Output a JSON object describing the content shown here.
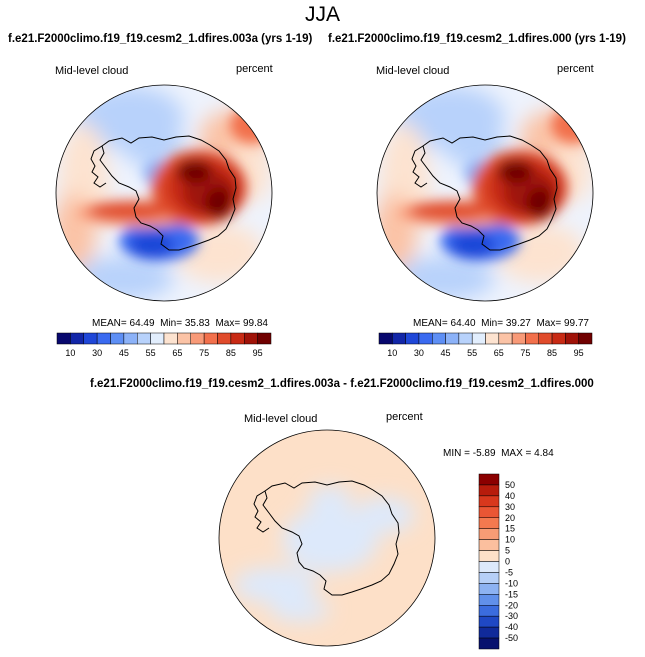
{
  "page": {
    "title": "JJA"
  },
  "chart_data": [
    {
      "type": "heatmap",
      "projection": "south-polar-stereographic",
      "title": "f.e21.F2000climo.f19_f19.cesm2_1.dfires.003a (yrs 1-19)",
      "variable_label": "Mid-level cloud",
      "units_label": "percent",
      "stats": {
        "mean_label": "MEAN=",
        "mean": "64.49",
        "min_label": "Min=",
        "min": "35.83",
        "max_label": "Max=",
        "max": "99.84"
      },
      "colorbar": {
        "orientation": "horizontal",
        "tick_labels": [
          "10",
          "30",
          "45",
          "55",
          "65",
          "75",
          "85",
          "95"
        ],
        "colors": [
          "#08086e",
          "#1226a8",
          "#1f47d8",
          "#3a6af0",
          "#5e8ff5",
          "#8cb2f8",
          "#b8d2fb",
          "#e2eefd",
          "#fde3d0",
          "#fbc3a6",
          "#f89a78",
          "#f2704c",
          "#e04b2b",
          "#c82a14",
          "#a01208",
          "#700000"
        ]
      }
    },
    {
      "type": "heatmap",
      "projection": "south-polar-stereographic",
      "title": "f.e21.F2000climo.f19_f19.cesm2_1.dfires.000 (yrs 1-19)",
      "variable_label": "Mid-level cloud",
      "units_label": "percent",
      "stats": {
        "mean_label": "MEAN=",
        "mean": "64.40",
        "min_label": "Min=",
        "min": "39.27",
        "max_label": "Max=",
        "max": "99.77"
      },
      "colorbar": {
        "orientation": "horizontal",
        "tick_labels": [
          "10",
          "30",
          "45",
          "55",
          "65",
          "75",
          "85",
          "95"
        ],
        "colors": [
          "#08086e",
          "#1226a8",
          "#1f47d8",
          "#3a6af0",
          "#5e8ff5",
          "#8cb2f8",
          "#b8d2fb",
          "#e2eefd",
          "#fde3d0",
          "#fbc3a6",
          "#f89a78",
          "#f2704c",
          "#e04b2b",
          "#c82a14",
          "#a01208",
          "#700000"
        ]
      }
    },
    {
      "type": "heatmap",
      "projection": "south-polar-stereographic",
      "title": "f.e21.F2000climo.f19_f19.cesm2_1.dfires.003a - f.e21.F2000climo.f19_f19.cesm2_1.dfires.000",
      "variable_label": "Mid-level cloud",
      "units_label": "percent",
      "stats": {
        "min_label": "MIN =",
        "min": "-5.89",
        "max_label": "MAX =",
        "max": "4.84"
      },
      "colorbar": {
        "orientation": "vertical",
        "tick_labels": [
          "50",
          "40",
          "30",
          "20",
          "15",
          "10",
          "5",
          "0",
          "-5",
          "-10",
          "-15",
          "-20",
          "-30",
          "-40",
          "-50"
        ],
        "colors": [
          "#8b0000",
          "#b71c0c",
          "#d8381d",
          "#ea5634",
          "#f4794f",
          "#f89c75",
          "#fbbf9e",
          "#fde0c8",
          "#dde9fb",
          "#b6cff7",
          "#8db2f2",
          "#6190ea",
          "#3b6cde",
          "#1f48c4",
          "#102a9a",
          "#07116e"
        ]
      }
    }
  ]
}
